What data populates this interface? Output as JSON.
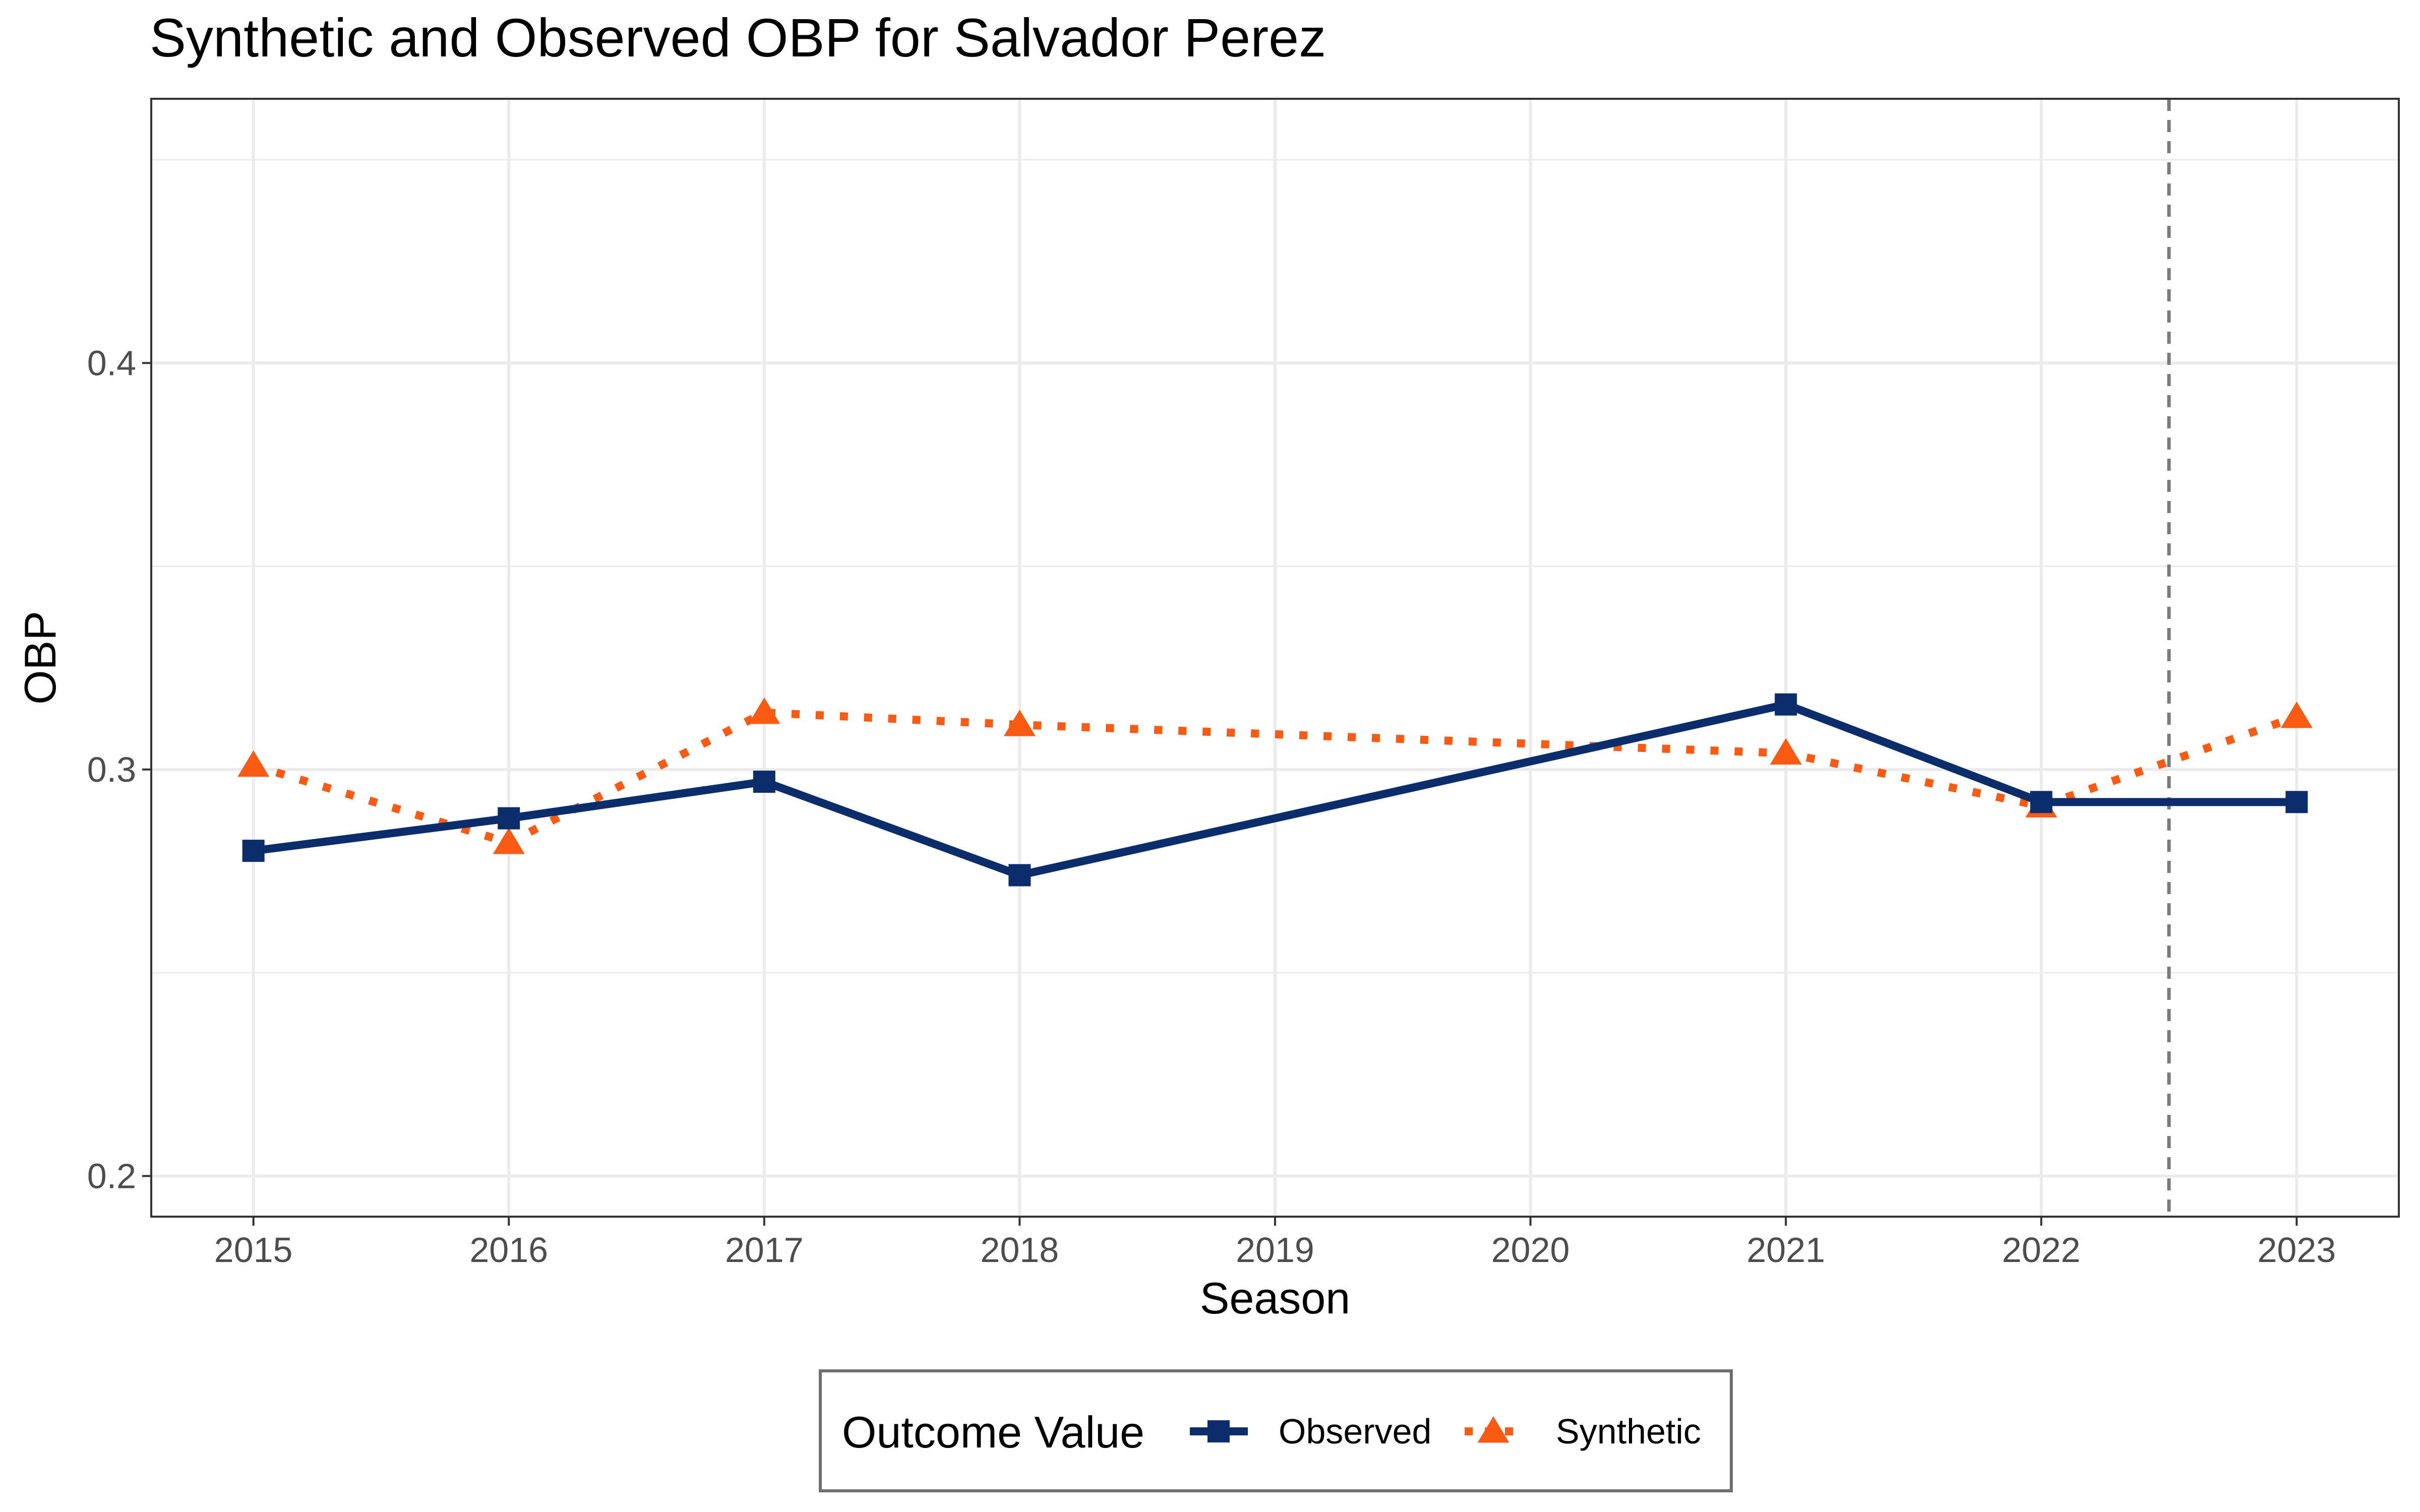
{
  "chart_data": {
    "type": "line",
    "title": "Synthetic and Observed OBP for Salvador Perez",
    "xlabel": "Season",
    "ylabel": "OBP",
    "x": [
      2015,
      2016,
      2017,
      2018,
      2021,
      2022,
      2023
    ],
    "xlim": [
      2014.6,
      2023.4
    ],
    "ylim": [
      0.19,
      0.465
    ],
    "x_ticks": [
      "2015",
      "2016",
      "2017",
      "2018",
      "2019",
      "2020",
      "2021",
      "2022",
      "2023"
    ],
    "y_ticks": [
      "0.2",
      "0.3",
      "0.4"
    ],
    "grid": true,
    "reference_line": {
      "x": 2022.5,
      "style": "dashed"
    },
    "series": [
      {
        "name": "Observed",
        "color": "#0b2d6c",
        "marker": "square",
        "line": "solid",
        "values": [
          0.28,
          0.288,
          0.297,
          0.274,
          0.316,
          0.292,
          0.292
        ]
      },
      {
        "name": "Synthetic",
        "color": "#fa5a12",
        "marker": "triangle",
        "line": "dotted",
        "values": [
          0.301,
          0.282,
          0.314,
          0.311,
          0.304,
          0.291,
          0.313
        ]
      }
    ],
    "legend": {
      "title": "Outcome Value",
      "placement": "bottom"
    }
  }
}
